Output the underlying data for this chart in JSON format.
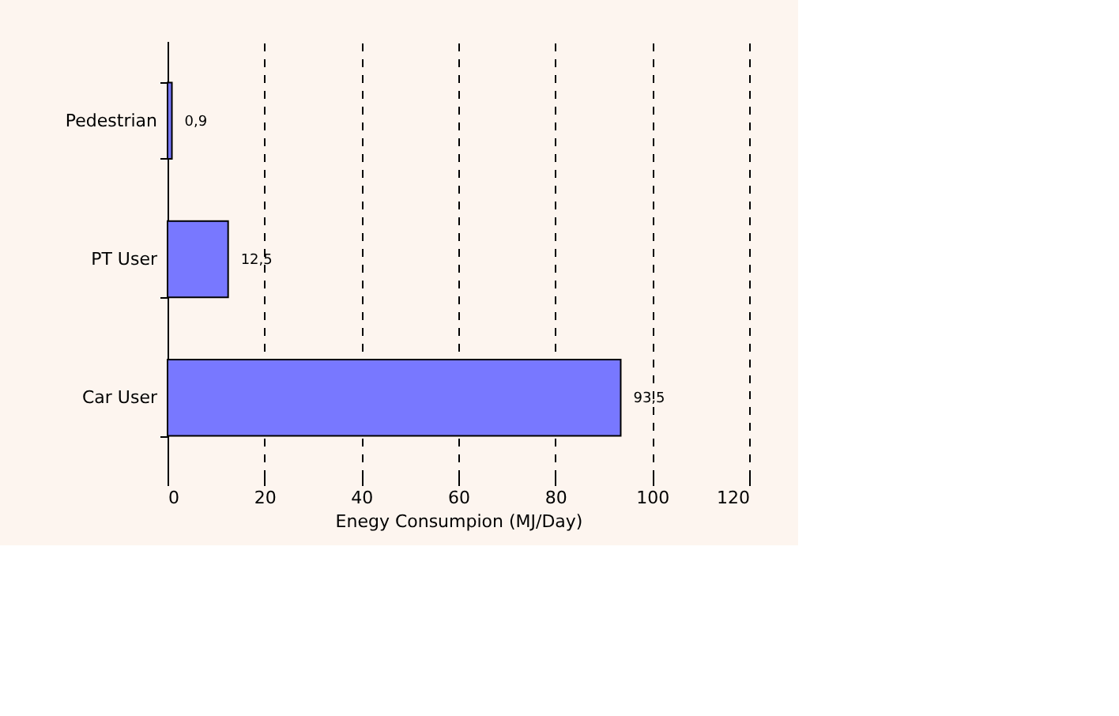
{
  "chart_data": {
    "type": "bar",
    "orientation": "horizontal",
    "xlabel": "Enegy Consumpion (MJ/Day)",
    "categories": [
      "Pedestrian",
      "PT User",
      "Car User"
    ],
    "values": [
      0.9,
      12.5,
      93.5
    ],
    "color": "#7878ff",
    "value_labels": [
      "0,9",
      "12,5",
      "93,5"
    ],
    "xlim": [
      0,
      120
    ],
    "xticks": [
      0,
      20,
      40,
      60,
      80,
      100,
      120
    ],
    "grid": "x",
    "line_style": "dashed"
  }
}
